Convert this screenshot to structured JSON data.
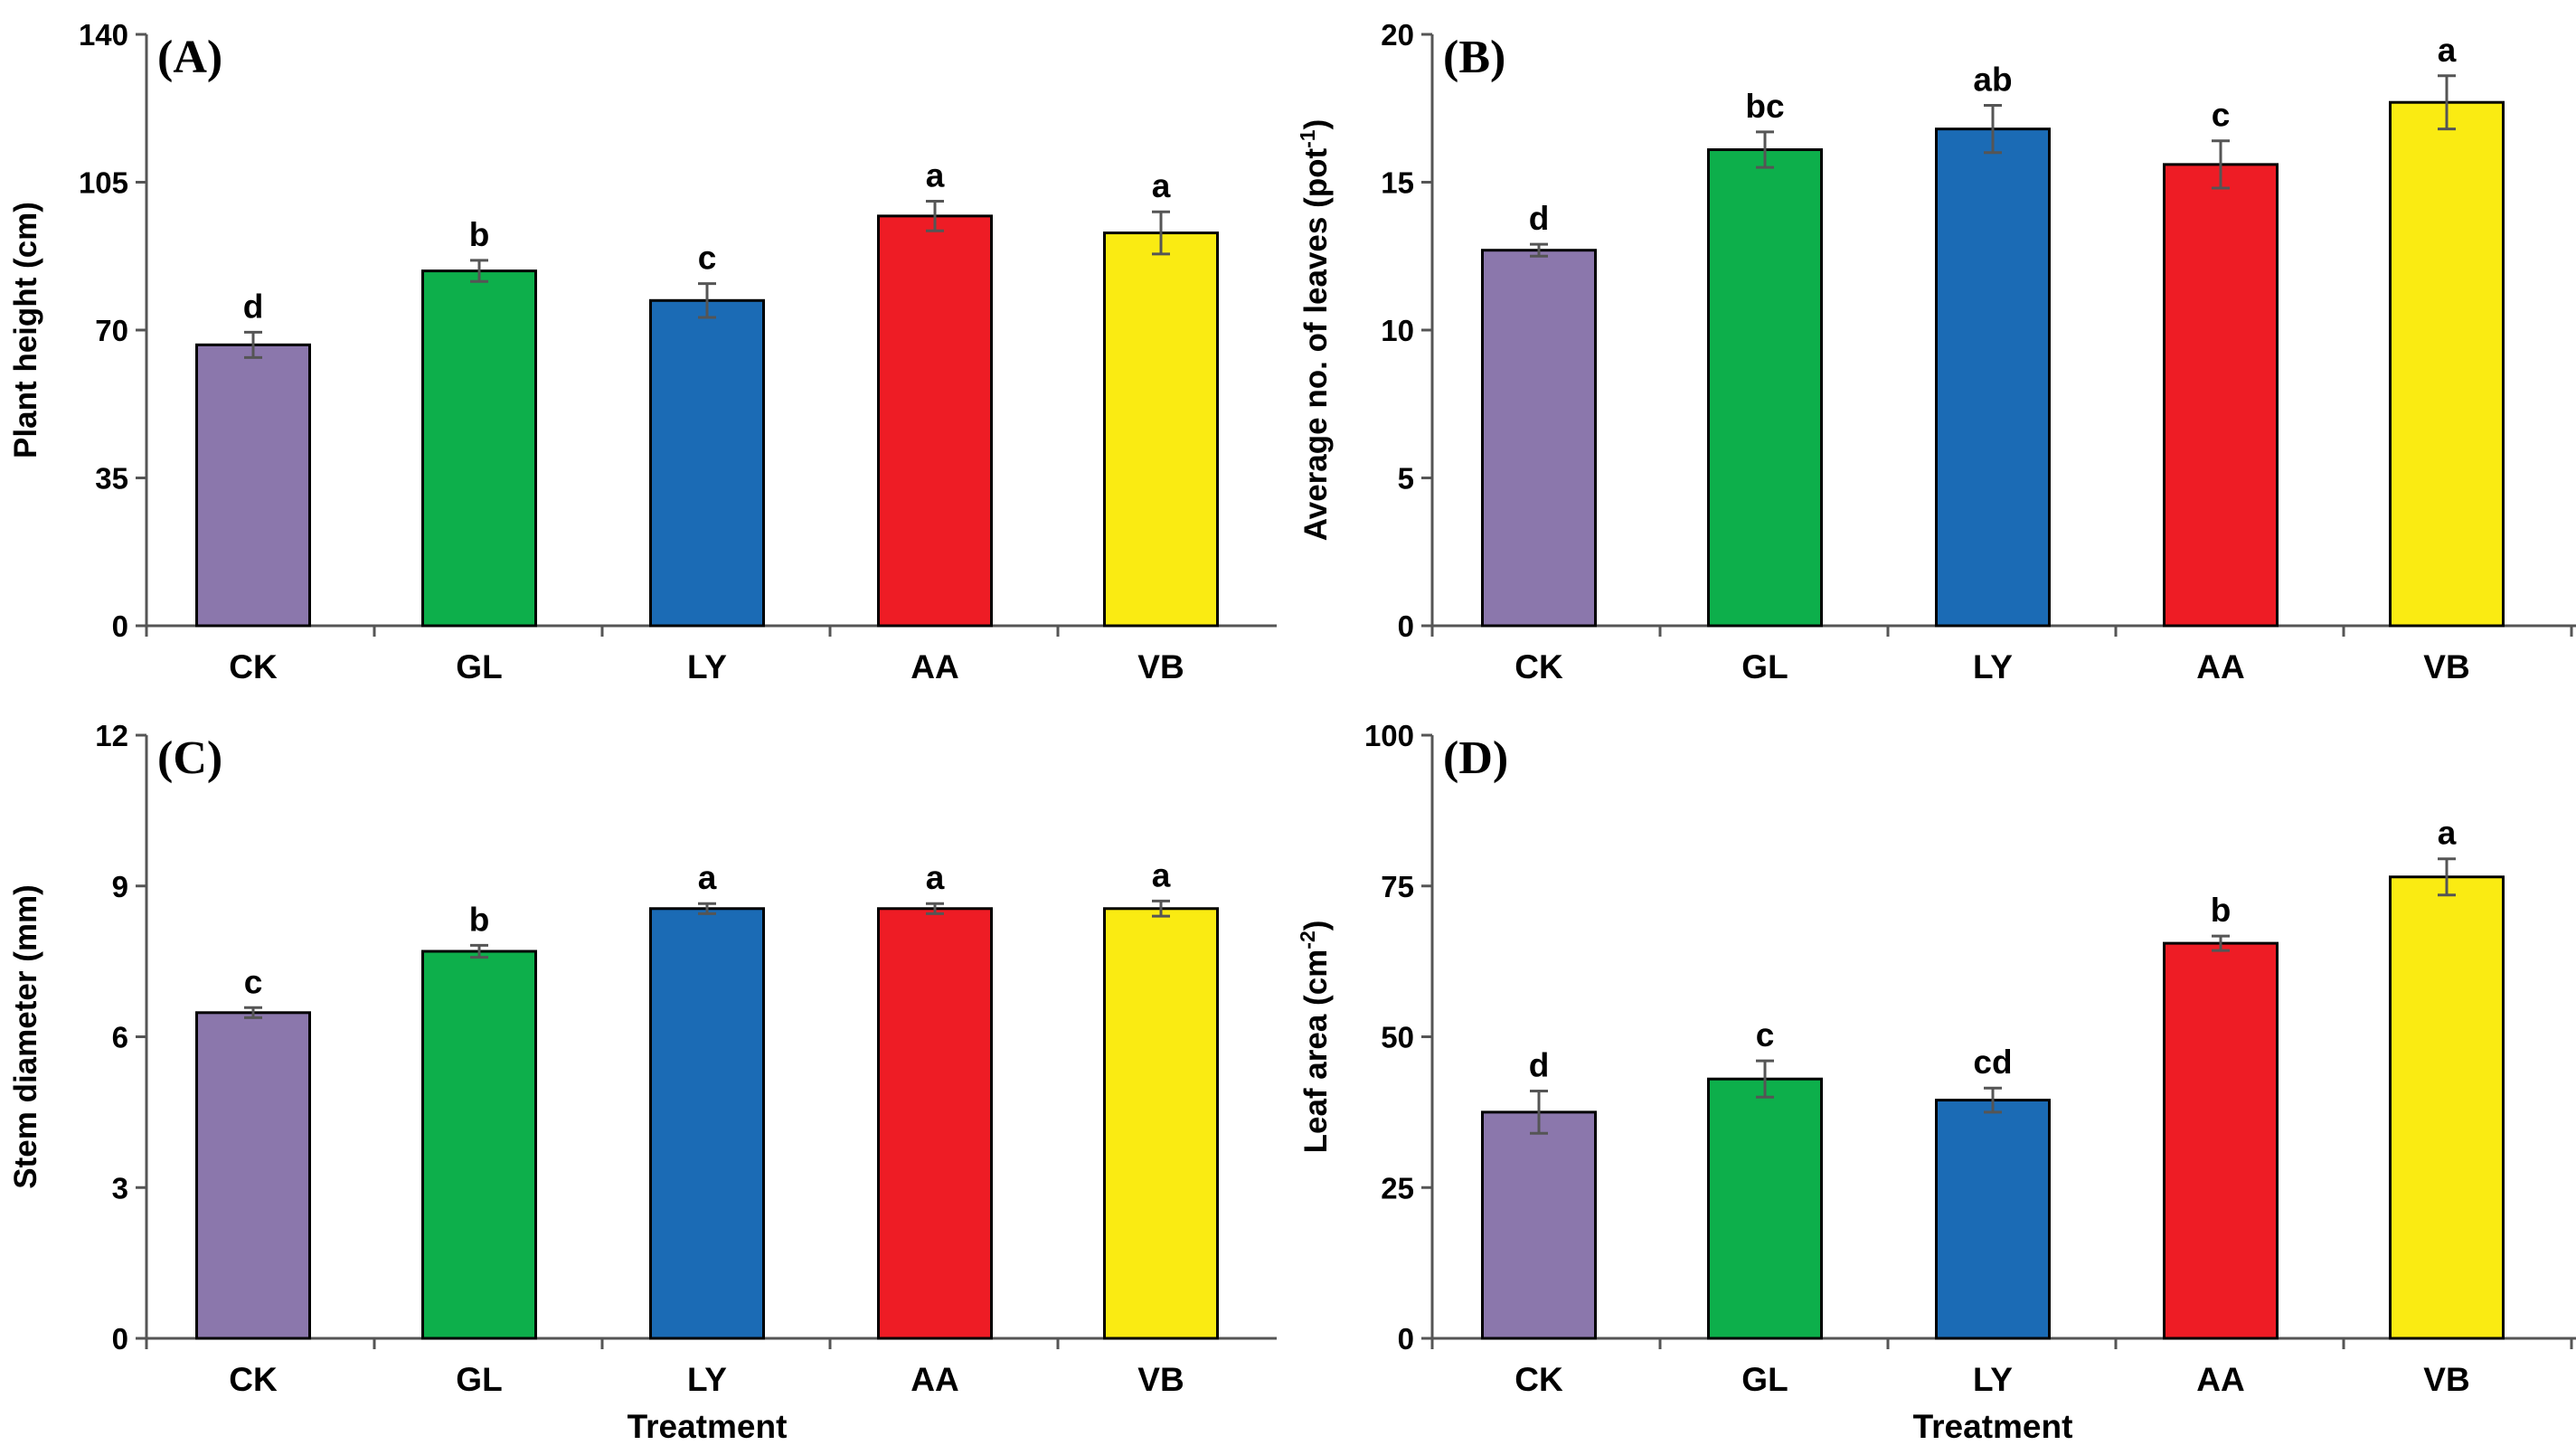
{
  "chart_data": [
    {
      "type": "bar",
      "panel_label": "(A)",
      "categories": [
        "CK",
        "GL",
        "LY",
        "AA",
        "VB"
      ],
      "values": [
        66.5,
        84,
        77,
        97,
        93
      ],
      "errors": [
        3,
        2.5,
        4,
        3.5,
        5
      ],
      "significance": [
        "d",
        "b",
        "c",
        "a",
        "a"
      ],
      "colors": [
        "#8B77AC",
        "#0DAF4B",
        "#1B6BB5",
        "#EE1C25",
        "#FAEB12"
      ],
      "ylabel": "Plant height (cm)",
      "xlabel": "",
      "ylim": [
        0,
        140
      ],
      "yticks": [
        "0",
        "35",
        "70",
        "105",
        "140"
      ]
    },
    {
      "type": "bar",
      "panel_label": "(B)",
      "categories": [
        "CK",
        "GL",
        "LY",
        "AA",
        "VB"
      ],
      "values": [
        12.7,
        16.1,
        16.8,
        15.6,
        17.7
      ],
      "errors": [
        0.2,
        0.6,
        0.8,
        0.8,
        0.9
      ],
      "significance": [
        "d",
        "bc",
        "ab",
        "c",
        "a"
      ],
      "colors": [
        "#8B77AC",
        "#0DAF4B",
        "#1B6BB5",
        "#EE1C25",
        "#FAEB12"
      ],
      "ylabel": "Average no. of leaves (pot",
      "ylabel_sup": "-1",
      "ylabel_end": ")",
      "xlabel": "",
      "ylim": [
        0,
        20
      ],
      "yticks": [
        "0",
        "5",
        "10",
        "15",
        "20"
      ]
    },
    {
      "type": "bar",
      "panel_label": "(C)",
      "categories": [
        "CK",
        "GL",
        "LY",
        "AA",
        "VB"
      ],
      "values": [
        6.48,
        7.7,
        8.55,
        8.55,
        8.55
      ],
      "errors": [
        0.1,
        0.12,
        0.1,
        0.1,
        0.15
      ],
      "significance": [
        "c",
        "b",
        "a",
        "a",
        "a"
      ],
      "colors": [
        "#8B77AC",
        "#0DAF4B",
        "#1B6BB5",
        "#EE1C25",
        "#FAEB12"
      ],
      "ylabel": "Stem diameter (mm)",
      "xlabel": "Treatment",
      "ylim": [
        0,
        12
      ],
      "yticks": [
        "0",
        "3",
        "6",
        "9",
        "12"
      ]
    },
    {
      "type": "bar",
      "panel_label": "(D)",
      "categories": [
        "CK",
        "GL",
        "LY",
        "AA",
        "VB"
      ],
      "values": [
        37.5,
        43,
        39.5,
        65.5,
        76.5
      ],
      "errors": [
        3.5,
        3,
        2,
        1.2,
        3
      ],
      "significance": [
        "d",
        "c",
        "cd",
        "b",
        "a"
      ],
      "colors": [
        "#8B77AC",
        "#0DAF4B",
        "#1B6BB5",
        "#EE1C25",
        "#FAEB12"
      ],
      "ylabel": "Leaf area (cm",
      "ylabel_sup": "-2",
      "ylabel_end": ")",
      "xlabel": "Treatment",
      "ylim": [
        0,
        100
      ],
      "yticks": [
        "0",
        "25",
        "50",
        "75",
        "100"
      ]
    }
  ]
}
